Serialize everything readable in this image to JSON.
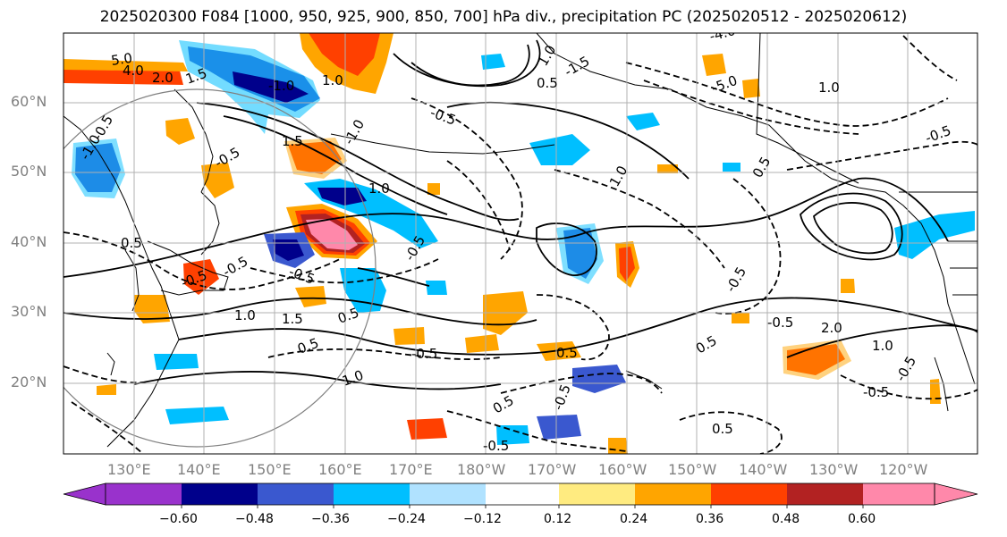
{
  "title": "2025020300 F084 [1000, 950, 925, 900, 850, 700] hPa div., precipitation PC (2025020512 - 2025020612)",
  "map": {
    "lat_labels": [
      "60°N",
      "50°N",
      "40°N",
      "30°N",
      "20°N"
    ],
    "lon_labels": [
      "130°E",
      "140°E",
      "150°E",
      "160°E",
      "170°E",
      "180°W",
      "170°W",
      "160°W",
      "150°W",
      "140°W",
      "130°W",
      "120°W"
    ],
    "contour_labels": [
      "5.0",
      "4.0",
      "2.0",
      "1.5",
      "1.0",
      "-1.0",
      "-1.0",
      "-0.5",
      "-0.5",
      "0.5",
      "1.0",
      "-4.0",
      "-5.0",
      "1.0",
      "-0.5",
      "-1.5",
      "1.5",
      "-1.0",
      "-0.5",
      "0.5",
      "-0.5",
      "-0.5",
      "1.0",
      "1.5",
      "0.5",
      "1.0",
      "-0.5",
      "-0.5",
      "0.5",
      "-0.5",
      "1.0",
      "0.5",
      "0.5",
      "-0.5",
      "-0.5",
      "0.5",
      "1.0",
      "-0.5",
      "-0.5",
      "2.0",
      "0.5",
      "-0.5",
      "0.5",
      "1.0",
      "-0.5"
    ],
    "colors": {
      "land_outline": "#000000",
      "gridline": "#b0b0b0",
      "positive_contour": "#000000",
      "negative_contour": "#000000"
    }
  },
  "colorbar": {
    "tick_labels": [
      "−0.60",
      "−0.48",
      "−0.36",
      "−0.24",
      "−0.12",
      "0.12",
      "0.24",
      "0.36",
      "0.48",
      "0.60"
    ],
    "colors": [
      "#9932cc",
      "#00008b",
      "#3a58cf",
      "#00bfff",
      "#b0e2ff",
      "#ffffff",
      "#ffeb80",
      "#ffa500",
      "#ff4000",
      "#b22222",
      "#ff88aa"
    ]
  }
}
